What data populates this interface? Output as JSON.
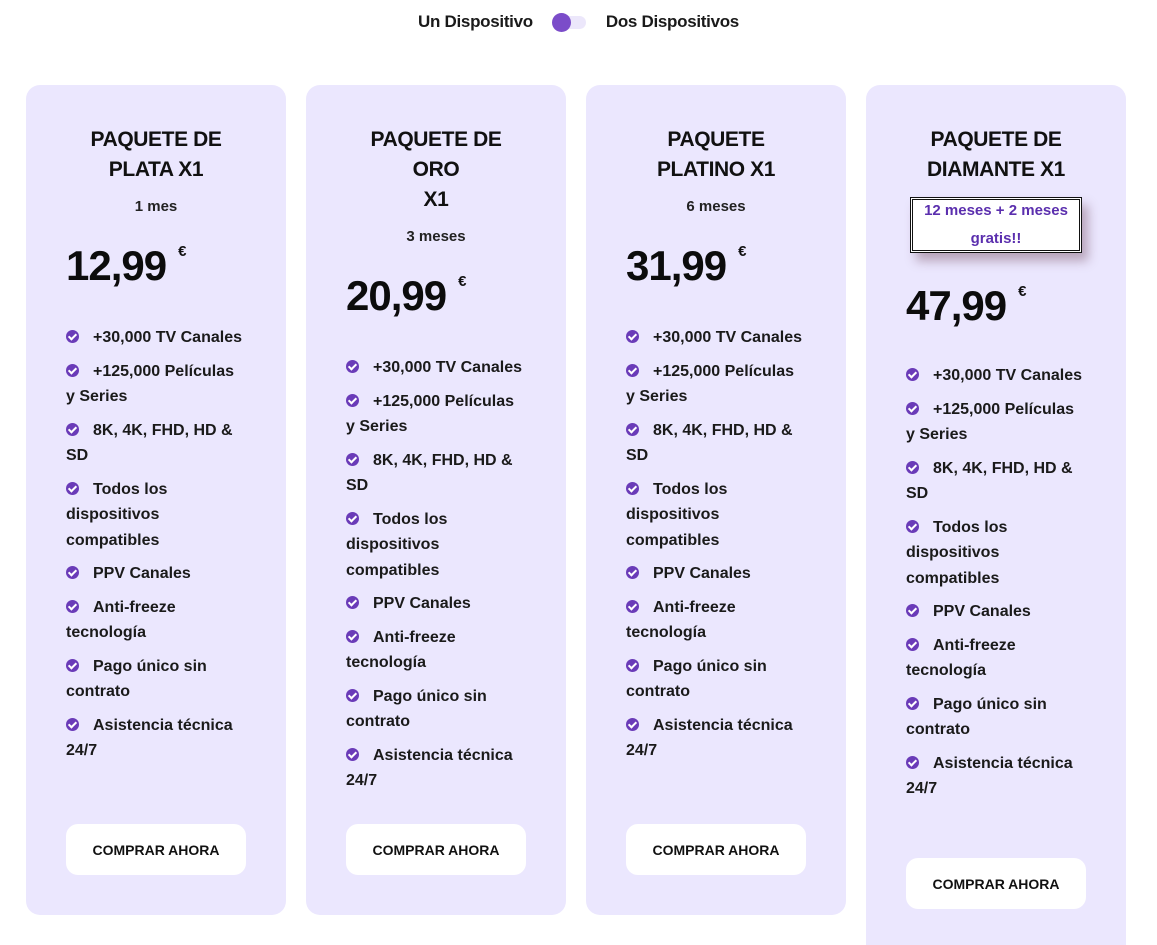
{
  "device_toggle": {
    "left_label": "Un Dispositivo",
    "right_label": "Dos Dispositivos"
  },
  "colors": {
    "card_background": "#ebe7fe",
    "accent": "#6a3bb8",
    "toggle_knob": "#7b4cc9",
    "badge_text": "#5b2fae"
  },
  "plans": [
    {
      "title": "PAQUETE DE\nPLATA X1",
      "duration": "1 mes",
      "price": "12,99",
      "currency": "€",
      "button_label": "COMPRAR AHORA"
    },
    {
      "title": "PAQUETE DE ORO\nX1",
      "duration": "3 meses",
      "price": "20,99",
      "currency": "€",
      "button_label": "COMPRAR AHORA"
    },
    {
      "title": "PAQUETE\nPLATINO X1",
      "duration": "6 meses",
      "price": "31,99",
      "currency": "€",
      "button_label": "COMPRAR AHORA"
    },
    {
      "title": "PAQUETE DE\nDIAMANTE X1",
      "promo": "12 meses + 2 meses gratis!!",
      "price": "47,99",
      "currency": "€",
      "button_label": "COMPRAR AHORA"
    }
  ],
  "features": [
    "+30,000 TV Canales",
    "+125,000 Películas y Series",
    "8K, 4K, FHD, HD & SD",
    "Todos los dispositivos compatibles",
    "PPV Canales",
    "Anti-freeze tecnología",
    "Pago único sin contrato",
    "Asistencia técnica 24/7"
  ],
  "icons": {
    "feature_bullet": "check-circle-icon"
  }
}
